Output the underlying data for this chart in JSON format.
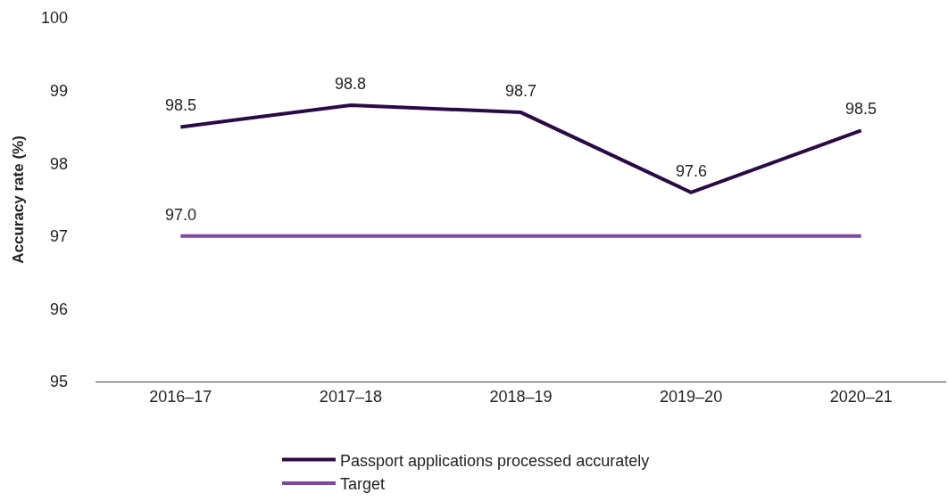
{
  "chart_data": {
    "type": "line",
    "ylabel": "Accuracy rate (%)",
    "categories": [
      "2016–17",
      "2017–18",
      "2018–19",
      "2019–20",
      "2020–21"
    ],
    "series": [
      {
        "name": "Passport applications processed accurately",
        "color": "#2a0a45",
        "values": [
          98.5,
          98.8,
          98.7,
          97.6,
          98.45
        ],
        "value_labels": [
          "98.5",
          "98.8",
          "98.7",
          "97.6",
          "98.5"
        ]
      },
      {
        "name": "Target",
        "color": "#7e4a9e",
        "values": [
          97.0,
          97.0,
          97.0,
          97.0,
          97.0
        ],
        "value_labels": [
          "97.0",
          null,
          null,
          null,
          null
        ]
      }
    ],
    "ylim": [
      95,
      100
    ],
    "yticks": [
      95,
      96,
      97,
      98,
      99,
      100
    ],
    "legend": "bottom",
    "marker": "none",
    "line_style": "solid"
  }
}
